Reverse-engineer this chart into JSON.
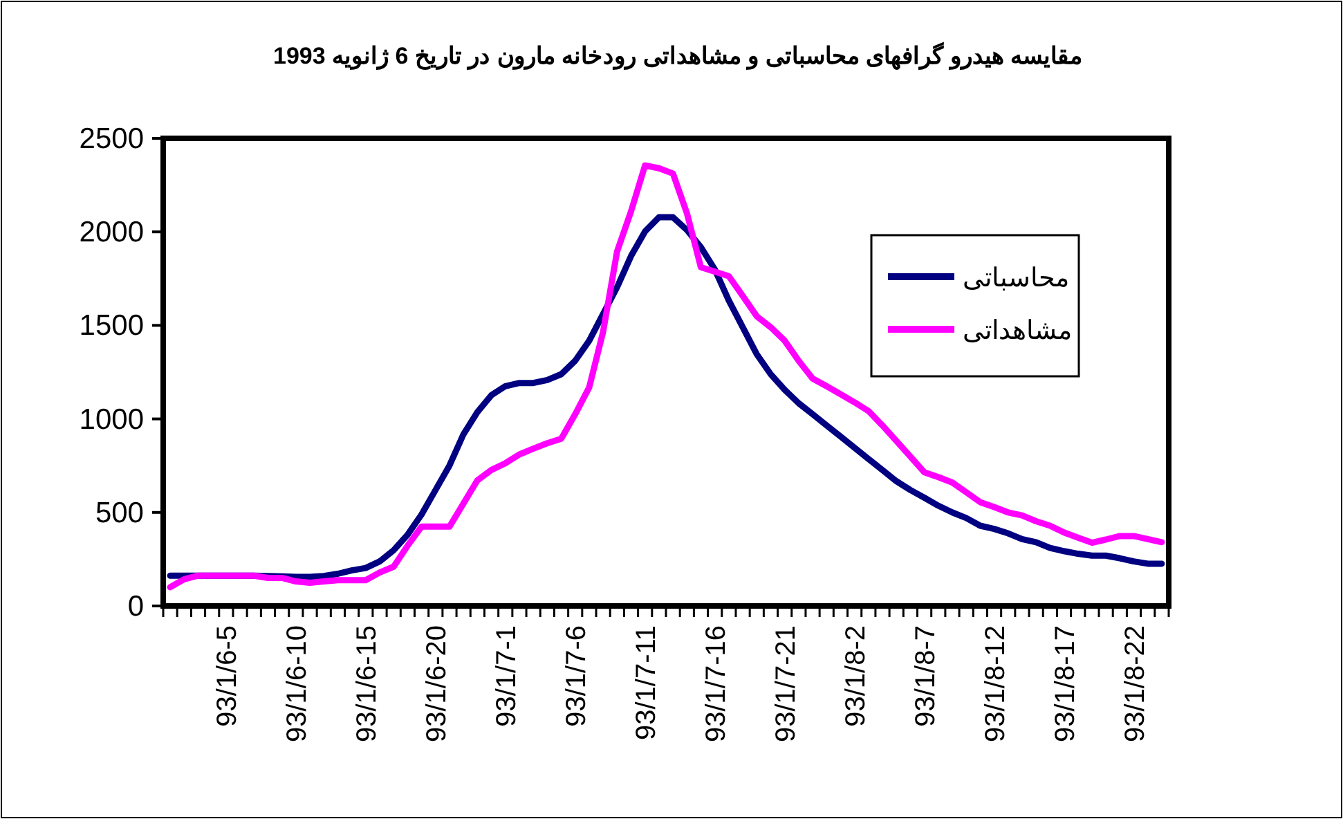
{
  "chart_data": {
    "type": "line",
    "title": "مقایسه هیدرو گرافهای محاسباتی و مشاهداتی رودخانه مارون در تاریخ  6 ژانویه 1993",
    "categories": [
      null,
      null,
      null,
      null,
      "93/1/6-5",
      null,
      null,
      null,
      null,
      "93/1/6-10",
      null,
      null,
      null,
      null,
      "93/1/6-15",
      null,
      null,
      null,
      null,
      "93/1/6-20",
      null,
      null,
      null,
      null,
      "93/1/7-1",
      null,
      null,
      null,
      null,
      "93/1/7-6",
      null,
      null,
      null,
      null,
      "93/1/7-11",
      null,
      null,
      null,
      null,
      "93/1/7-16",
      null,
      null,
      null,
      null,
      "93/1/7-21",
      null,
      null,
      null,
      null,
      "93/1/8-2",
      null,
      null,
      null,
      null,
      "93/1/8-7",
      null,
      null,
      null,
      null,
      "93/1/8-12",
      null,
      null,
      null,
      null,
      "93/1/8-17",
      null,
      null,
      null,
      null,
      "93/1/8-22",
      null,
      null
    ],
    "series": [
      {
        "name": "محاسباتی",
        "color": "#000080",
        "values": [
          162,
          162,
          162,
          162,
          162,
          162,
          162,
          160,
          158,
          155,
          155,
          160,
          172,
          190,
          203,
          238,
          298,
          381,
          489,
          620,
          751,
          918,
          1037,
          1127,
          1175,
          1192,
          1192,
          1208,
          1239,
          1311,
          1418,
          1561,
          1704,
          1871,
          2002,
          2078,
          2078,
          2010,
          1918,
          1799,
          1633,
          1490,
          1346,
          1239,
          1156,
          1084,
          1025,
          965,
          906,
          846,
          786,
          727,
          667,
          620,
          579,
          536,
          500,
          470,
          429,
          412,
          388,
          357,
          341,
          310,
          293,
          279,
          269,
          269,
          255,
          238,
          226,
          226
        ]
      },
      {
        "name": "مشاهداتی",
        "color": "#ff00ff",
        "values": [
          100,
          143,
          162,
          162,
          162,
          162,
          162,
          150,
          150,
          131,
          124,
          131,
          138,
          138,
          138,
          179,
          210,
          322,
          424,
          424,
          424,
          548,
          672,
          727,
          763,
          810,
          841,
          870,
          894,
          1025,
          1168,
          1466,
          1895,
          2110,
          2355,
          2340,
          2312,
          2100,
          1811,
          1787,
          1763,
          1657,
          1549,
          1490,
          1418,
          1311,
          1216,
          1175,
          1132,
          1089,
          1042,
          965,
          882,
          799,
          715,
          689,
          660,
          608,
          555,
          529,
          500,
          484,
          453,
          429,
          393,
          365,
          338,
          355,
          374,
          374,
          357,
          341
        ]
      }
    ],
    "ylim": [
      0,
      2500
    ],
    "yticks": [
      0,
      500,
      1000,
      1500,
      2000,
      2500
    ],
    "legend": "top right"
  }
}
